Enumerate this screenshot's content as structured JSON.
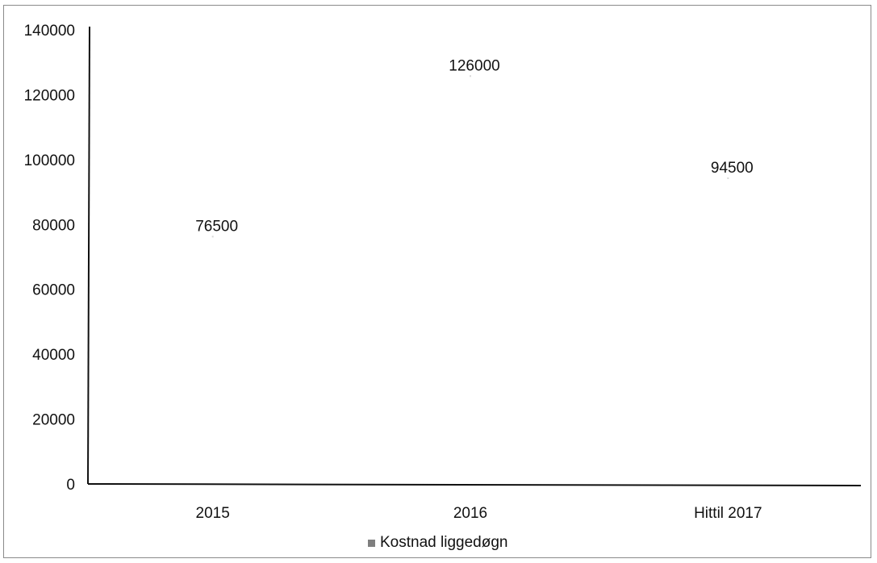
{
  "chart_data": {
    "type": "bar",
    "categories": [
      "2015",
      "2016",
      "Hittil 2017"
    ],
    "series": [
      {
        "name": "Kostnad liggedøgn",
        "values": [
          76500,
          126000,
          94500
        ],
        "color": "#7f7f7f"
      }
    ],
    "data_labels": [
      "76500",
      "126000",
      "94500"
    ],
    "ylim": [
      0,
      140000
    ],
    "yticks": [
      0,
      20000,
      40000,
      60000,
      80000,
      100000,
      120000,
      140000
    ],
    "ytick_labels": [
      "0",
      "20000",
      "40000",
      "60000",
      "80000",
      "100000",
      "120000",
      "140000"
    ],
    "grid": false,
    "legend": "bottom"
  }
}
